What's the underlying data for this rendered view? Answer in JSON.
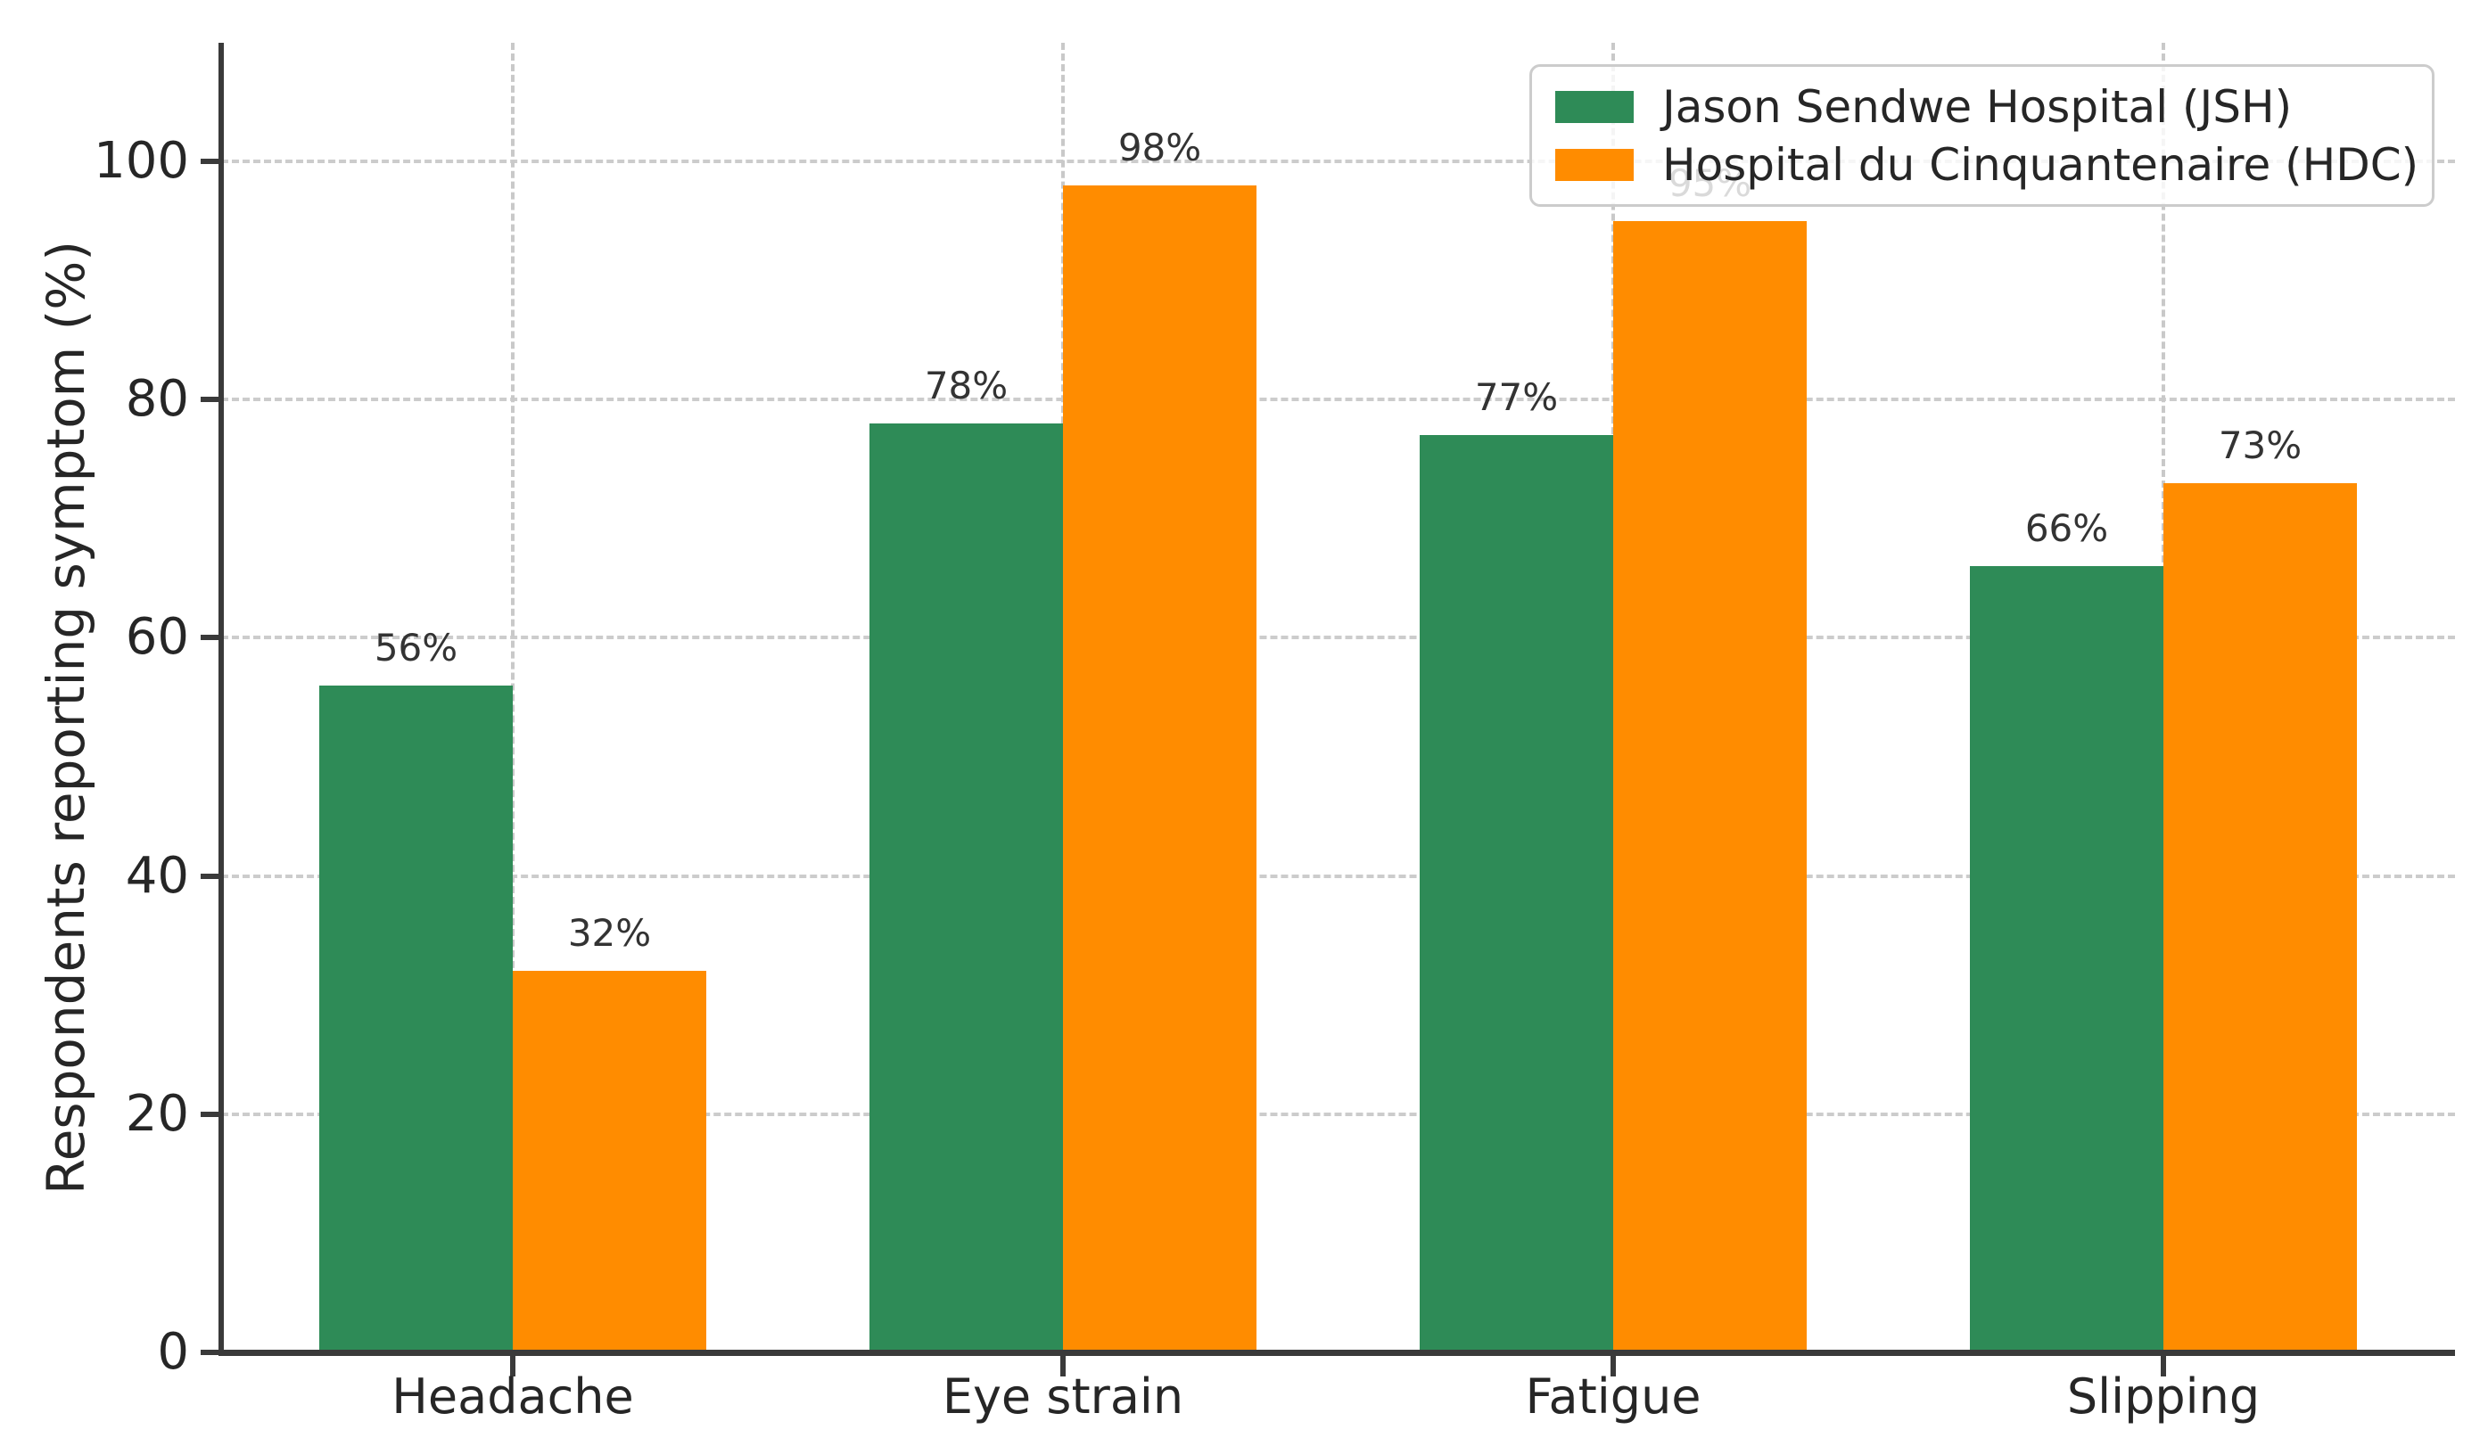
{
  "chart_data": {
    "type": "bar",
    "title": "",
    "categories": [
      "Headache",
      "Eye strain",
      "Fatigue",
      "Slipping"
    ],
    "series": [
      {
        "name": "Jason Sendwe Hospital (JSH)",
        "color": "#2E8B57",
        "values": [
          56,
          78,
          77,
          66
        ],
        "value_labels": [
          "56%",
          "78%",
          "77%",
          "66%"
        ]
      },
      {
        "name": "Hospital du Cinquantenaire (HDC)",
        "color": "#FF8C00",
        "values": [
          32,
          98,
          95,
          73
        ],
        "value_labels": [
          "32%",
          "98%",
          "95%",
          "73%"
        ]
      }
    ],
    "xlabel": "",
    "ylabel": "Respondents reporting symptom (%)",
    "ylim": [
      0,
      110
    ],
    "yticks": [
      0,
      20,
      40,
      60,
      80,
      100
    ],
    "ytick_labels": [
      "0",
      "20",
      "40",
      "60",
      "80",
      "100"
    ],
    "grid": "dashed, horizontal and vertical",
    "legend_position": "upper right"
  },
  "style": {
    "background": "#ffffff",
    "series_green": "#2E8B57",
    "series_orange": "#FF8C00",
    "grid_color": "#cccccc",
    "axis_color": "#3a3a3a",
    "text_color": "#262626",
    "annotation_color": "#333333",
    "legend_bg": "rgba(255,255,255,0.82)",
    "legend_border": "#cccccc"
  }
}
